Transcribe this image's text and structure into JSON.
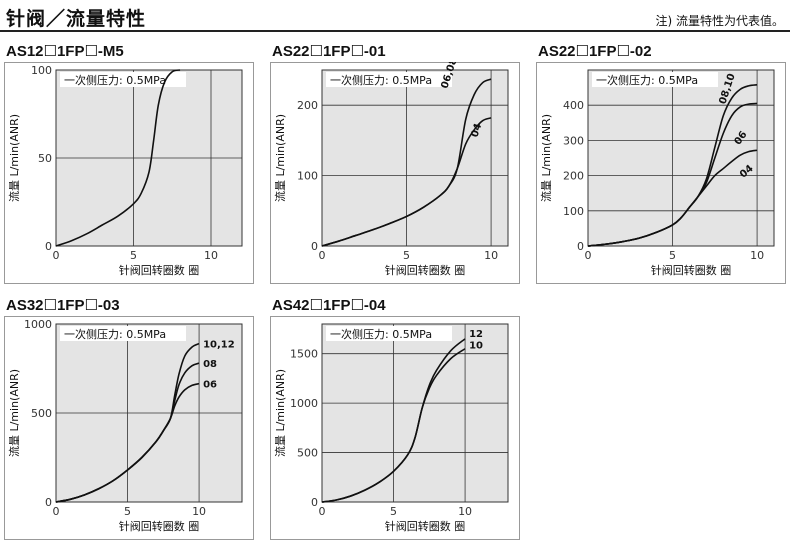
{
  "page": {
    "title": "针阀／流量特性",
    "note": "注) 流量特性为代表值。"
  },
  "chart_data": [
    {
      "type": "line",
      "title": "AS12☐1FP☐-M5",
      "annotation": "一次侧压力: 0.5MPa",
      "xlabel": "针阀回转圈数 圈",
      "ylabel": "流量 L/min(ANR)",
      "xlim": [
        0,
        12
      ],
      "ylim": [
        0,
        100
      ],
      "xticks": [
        0,
        5,
        10
      ],
      "yticks": [
        0,
        50,
        100
      ],
      "grid": true,
      "series": [
        {
          "name": "",
          "x": [
            0,
            1,
            2,
            3,
            4,
            5,
            5.5,
            6,
            6.3,
            6.6,
            7,
            7.5,
            8
          ],
          "y": [
            0,
            3,
            7,
            12,
            17,
            24,
            30,
            42,
            60,
            80,
            93,
            99,
            100
          ]
        }
      ]
    },
    {
      "type": "line",
      "title": "AS22☐1FP☐-01",
      "annotation": "一次侧压力: 0.5MPa",
      "xlabel": "针阀回转圈数 圈",
      "ylabel": "流量 L/min(ANR)",
      "xlim": [
        0,
        11
      ],
      "ylim": [
        0,
        250
      ],
      "xticks": [
        0,
        5,
        10
      ],
      "yticks": [
        0,
        100,
        200
      ],
      "grid": true,
      "series": [
        {
          "name": "06,08",
          "x": [
            0,
            1,
            2,
            3,
            4,
            5,
            6,
            7,
            7.5,
            8,
            8.5,
            9,
            9.5,
            10
          ],
          "y": [
            0,
            7,
            15,
            23,
            32,
            42,
            55,
            72,
            85,
            110,
            180,
            215,
            232,
            237
          ]
        },
        {
          "name": "04",
          "x": [
            0,
            1,
            2,
            3,
            4,
            5,
            6,
            7,
            7.5,
            8,
            8.5,
            9,
            9.5,
            10
          ],
          "y": [
            0,
            7,
            15,
            23,
            32,
            42,
            55,
            72,
            85,
            110,
            145,
            165,
            178,
            182
          ]
        }
      ]
    },
    {
      "type": "line",
      "title": "AS22☐1FP☐-02",
      "annotation": "一次侧压力: 0.5MPa",
      "xlabel": "针阀回转圈数 圈",
      "ylabel": "流量 L/min(ANR)",
      "xlim": [
        0,
        11
      ],
      "ylim": [
        0,
        500
      ],
      "xticks": [
        0,
        5,
        10
      ],
      "yticks": [
        0,
        100,
        200,
        300,
        400
      ],
      "grid": true,
      "series": [
        {
          "name": "08,10",
          "x": [
            0,
            1,
            2,
            3,
            4,
            5,
            5.5,
            6,
            6.5,
            7,
            7.5,
            8,
            8.5,
            9,
            9.5,
            10
          ],
          "y": [
            0,
            5,
            12,
            22,
            38,
            60,
            80,
            110,
            140,
            190,
            280,
            370,
            420,
            445,
            455,
            458
          ]
        },
        {
          "name": "06",
          "x": [
            0,
            1,
            2,
            3,
            4,
            5,
            5.5,
            6,
            6.5,
            7,
            7.5,
            8,
            8.5,
            9,
            9.5,
            10
          ],
          "y": [
            0,
            5,
            12,
            22,
            38,
            60,
            80,
            110,
            140,
            180,
            250,
            320,
            370,
            395,
            403,
            405
          ]
        },
        {
          "name": "04",
          "x": [
            0,
            1,
            2,
            3,
            4,
            5,
            5.5,
            6,
            6.5,
            7,
            7.5,
            8,
            8.5,
            9,
            9.5,
            10
          ],
          "y": [
            0,
            5,
            12,
            22,
            38,
            60,
            80,
            110,
            140,
            170,
            200,
            220,
            240,
            258,
            268,
            272
          ]
        }
      ]
    },
    {
      "type": "line",
      "title": "AS32☐1FP☐-03",
      "annotation": "一次侧压力: 0.5MPa",
      "xlabel": "针阀回转圈数 圈",
      "ylabel": "流量 L/min(ANR)",
      "xlim": [
        0,
        13
      ],
      "ylim": [
        0,
        1000
      ],
      "xticks": [
        0,
        5,
        10
      ],
      "yticks": [
        0,
        500,
        1000
      ],
      "grid": true,
      "series": [
        {
          "name": "10,12",
          "x": [
            0,
            1,
            2,
            3,
            4,
            5,
            6,
            7,
            7.5,
            8,
            8.3,
            8.6,
            9,
            9.5,
            10
          ],
          "y": [
            0,
            15,
            40,
            75,
            120,
            180,
            250,
            340,
            400,
            470,
            600,
            720,
            820,
            870,
            890
          ]
        },
        {
          "name": "08",
          "x": [
            0,
            1,
            2,
            3,
            4,
            5,
            6,
            7,
            7.5,
            8,
            8.3,
            8.6,
            9,
            9.5,
            10
          ],
          "y": [
            0,
            15,
            40,
            75,
            120,
            180,
            250,
            340,
            400,
            470,
            570,
            660,
            725,
            765,
            780
          ]
        },
        {
          "name": "06",
          "x": [
            0,
            1,
            2,
            3,
            4,
            5,
            6,
            7,
            7.5,
            8,
            8.3,
            8.6,
            9,
            9.5,
            10
          ],
          "y": [
            0,
            15,
            40,
            75,
            120,
            180,
            250,
            340,
            400,
            470,
            540,
            590,
            630,
            655,
            665
          ]
        }
      ]
    },
    {
      "type": "line",
      "title": "AS42☐1FP☐-04",
      "annotation": "一次侧压力: 0.5MPa",
      "xlabel": "针阀回转圈数 圈",
      "ylabel": "流量 L/min(ANR)",
      "xlim": [
        0,
        13
      ],
      "ylim": [
        0,
        1800
      ],
      "xticks": [
        0,
        5,
        10
      ],
      "yticks": [
        0,
        500,
        1000,
        1500
      ],
      "grid": true,
      "series": [
        {
          "name": "12",
          "x": [
            0,
            1,
            2,
            3,
            4,
            5,
            6,
            6.5,
            7,
            7.5,
            8,
            9,
            10
          ],
          "y": [
            0,
            20,
            60,
            120,
            200,
            310,
            480,
            650,
            950,
            1180,
            1330,
            1530,
            1650
          ]
        },
        {
          "name": "10",
          "x": [
            0,
            1,
            2,
            3,
            4,
            5,
            6,
            6.5,
            7,
            7.5,
            8,
            9,
            10
          ],
          "y": [
            0,
            20,
            60,
            120,
            200,
            310,
            480,
            650,
            950,
            1150,
            1280,
            1450,
            1550
          ]
        }
      ]
    }
  ]
}
